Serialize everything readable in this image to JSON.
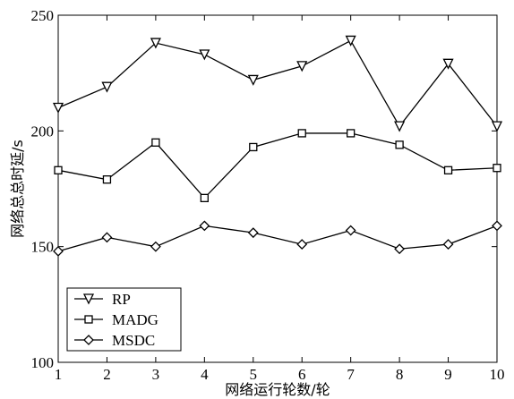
{
  "chart_data": {
    "type": "line",
    "xlabel": "网络运行轮数/轮",
    "ylabel": "网络总总时延/s",
    "x": [
      1,
      2,
      3,
      4,
      5,
      6,
      7,
      8,
      9,
      10
    ],
    "xlim": [
      1,
      10
    ],
    "ylim": [
      100,
      250
    ],
    "yticks": [
      100,
      150,
      200,
      250
    ],
    "grid": false,
    "legend_position": "bottom-left",
    "series": [
      {
        "name": "RP",
        "marker": "triangle-down",
        "values": [
          210,
          219,
          238,
          233,
          222,
          228,
          239,
          202,
          229,
          202
        ]
      },
      {
        "name": "MADG",
        "marker": "square",
        "values": [
          183,
          179,
          195,
          171,
          193,
          199,
          199,
          194,
          183,
          184
        ]
      },
      {
        "name": "MSDC",
        "marker": "diamond",
        "values": [
          148,
          154,
          150,
          159,
          156,
          151,
          157,
          149,
          151,
          159
        ]
      }
    ]
  }
}
